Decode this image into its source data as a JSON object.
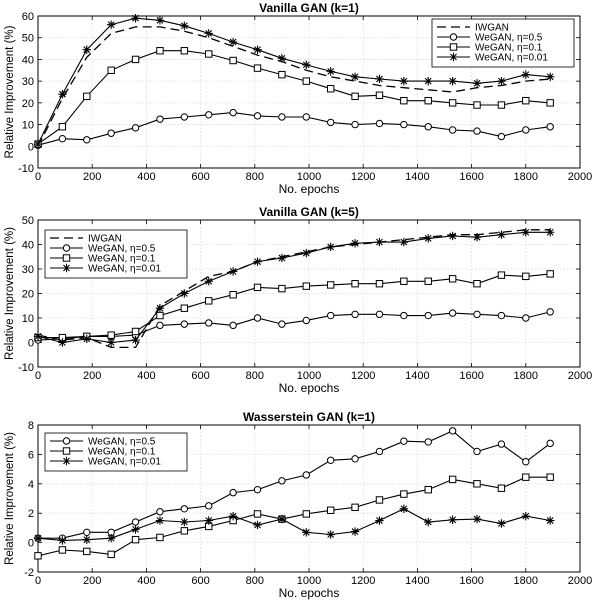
{
  "chart_data": [
    {
      "type": "line",
      "title": "Vanilla GAN (k=1)",
      "xlabel": "No. epochs",
      "ylabel": "Relative Improvement (%)",
      "xlim": [
        0,
        2000
      ],
      "ylim": [
        -10,
        60
      ],
      "xticks": [
        0,
        200,
        400,
        600,
        800,
        1000,
        1200,
        1400,
        1600,
        1800,
        2000
      ],
      "yticks": [
        -10,
        0,
        10,
        20,
        30,
        40,
        50,
        60
      ],
      "grid": true,
      "legend_position": "top-right",
      "series": [
        {
          "name": "IWGAN",
          "marker": "none",
          "dash": true,
          "x": [
            0,
            90,
            180,
            270,
            360,
            450,
            540,
            630,
            720,
            810,
            900,
            990,
            1080,
            1170,
            1260,
            1350,
            1440,
            1530,
            1620,
            1710,
            1800,
            1890
          ],
          "y": [
            0,
            22,
            41,
            52,
            55,
            55,
            53,
            50,
            46,
            42,
            39,
            35,
            32,
            30,
            28,
            27,
            26,
            25,
            27,
            28,
            30,
            31
          ]
        },
        {
          "name": "WeGAN, η=0.5",
          "marker": "circle",
          "dash": false,
          "x": [
            0,
            90,
            180,
            270,
            360,
            450,
            540,
            630,
            720,
            810,
            900,
            990,
            1080,
            1170,
            1260,
            1350,
            1440,
            1530,
            1620,
            1710,
            1800,
            1890
          ],
          "y": [
            0.5,
            3.5,
            3,
            6,
            8.5,
            12.5,
            13.5,
            14.5,
            15.5,
            14,
            13.5,
            13.5,
            11,
            10,
            10.5,
            10,
            9,
            7.5,
            7,
            4.5,
            7.5,
            9
          ]
        },
        {
          "name": "WeGAN, η=0.1",
          "marker": "square",
          "dash": false,
          "x": [
            0,
            90,
            180,
            270,
            360,
            450,
            540,
            630,
            720,
            810,
            900,
            990,
            1080,
            1170,
            1260,
            1350,
            1440,
            1530,
            1620,
            1710,
            1800,
            1890
          ],
          "y": [
            1,
            9,
            23,
            35,
            40,
            44,
            44,
            42.5,
            39.5,
            36,
            33,
            30,
            26.5,
            23,
            23.5,
            21,
            21,
            20,
            19,
            19,
            21,
            20
          ]
        },
        {
          "name": "WeGAN, η=0.01",
          "marker": "star",
          "dash": false,
          "x": [
            0,
            90,
            180,
            270,
            360,
            450,
            540,
            630,
            720,
            810,
            900,
            990,
            1080,
            1170,
            1260,
            1350,
            1440,
            1530,
            1620,
            1710,
            1800,
            1890
          ],
          "y": [
            1,
            24,
            44.5,
            56,
            59,
            58,
            55.5,
            52,
            48,
            44.5,
            40.5,
            37.5,
            34.5,
            32,
            31,
            30,
            30,
            30,
            29,
            30,
            33,
            32
          ]
        }
      ]
    },
    {
      "type": "line",
      "title": "Vanilla GAN (k=5)",
      "xlabel": "No. epochs",
      "ylabel": "Relative Improvement (%)",
      "xlim": [
        0,
        2000
      ],
      "ylim": [
        -10,
        50
      ],
      "xticks": [
        0,
        200,
        400,
        600,
        800,
        1000,
        1200,
        1400,
        1600,
        1800,
        2000
      ],
      "yticks": [
        -10,
        0,
        10,
        20,
        30,
        40,
        50
      ],
      "grid": true,
      "legend_position": "top-left",
      "series": [
        {
          "name": "IWGAN",
          "marker": "none",
          "dash": true,
          "x": [
            0,
            90,
            180,
            270,
            360,
            450,
            540,
            630,
            720,
            810,
            900,
            990,
            1080,
            1170,
            1260,
            1350,
            1440,
            1530,
            1620,
            1710,
            1800,
            1890
          ],
          "y": [
            3,
            1,
            2,
            -2,
            -2,
            15,
            21,
            27,
            29,
            33,
            35,
            37,
            39,
            40,
            41,
            42,
            43,
            44,
            44,
            45,
            46,
            46
          ]
        },
        {
          "name": "WeGAN, η=0.5",
          "marker": "circle",
          "dash": false,
          "x": [
            0,
            90,
            180,
            270,
            360,
            450,
            540,
            630,
            720,
            810,
            900,
            990,
            1080,
            1170,
            1260,
            1350,
            1440,
            1530,
            1620,
            1710,
            1800,
            1890
          ],
          "y": [
            1,
            1.5,
            2.5,
            2.5,
            3,
            7,
            7.5,
            8,
            7,
            10,
            7.5,
            9,
            11,
            11.5,
            11.5,
            11,
            11,
            12,
            11.5,
            11,
            10,
            12.5
          ]
        },
        {
          "name": "WeGAN, η=0.1",
          "marker": "square",
          "dash": false,
          "x": [
            0,
            90,
            180,
            270,
            360,
            450,
            540,
            630,
            720,
            810,
            900,
            990,
            1080,
            1170,
            1260,
            1350,
            1440,
            1530,
            1620,
            1710,
            1800,
            1890
          ],
          "y": [
            2,
            2,
            2.5,
            3,
            4.5,
            11,
            14,
            17,
            19.5,
            22.5,
            22,
            23,
            23.5,
            24,
            24,
            25,
            25,
            26,
            24,
            27.5,
            27,
            28
          ]
        },
        {
          "name": "WeGAN, η=0.01",
          "marker": "star",
          "dash": false,
          "x": [
            0,
            90,
            180,
            270,
            360,
            450,
            540,
            630,
            720,
            810,
            900,
            990,
            1080,
            1170,
            1260,
            1350,
            1440,
            1530,
            1620,
            1710,
            1800,
            1890
          ],
          "y": [
            2.5,
            0,
            1.5,
            0,
            1,
            14,
            20,
            25,
            29,
            33,
            34.5,
            36.5,
            39,
            40.5,
            41,
            41,
            42.5,
            43.5,
            43,
            44,
            45,
            45
          ]
        }
      ]
    },
    {
      "type": "line",
      "title": "Wasserstein GAN (k=1)",
      "xlabel": "No. epochs",
      "ylabel": "Relative Improvement (%)",
      "xlim": [
        0,
        2000
      ],
      "ylim": [
        -2,
        8
      ],
      "xticks": [
        0,
        200,
        400,
        600,
        800,
        1000,
        1200,
        1400,
        1600,
        1800,
        2000
      ],
      "yticks": [
        -2,
        0,
        2,
        4,
        6,
        8
      ],
      "grid": true,
      "legend_position": "top-left",
      "series": [
        {
          "name": "WeGAN, η=0.5",
          "marker": "circle",
          "dash": false,
          "x": [
            0,
            90,
            180,
            270,
            360,
            450,
            540,
            630,
            720,
            810,
            900,
            990,
            1080,
            1170,
            1260,
            1350,
            1440,
            1530,
            1620,
            1710,
            1800,
            1890
          ],
          "y": [
            0.3,
            0.3,
            0.7,
            0.7,
            1.4,
            2.1,
            2.3,
            2.5,
            3.4,
            3.6,
            4.2,
            4.6,
            5.6,
            5.7,
            6.2,
            6.9,
            6.85,
            7.6,
            6.2,
            6.7,
            5.5,
            6.75
          ]
        },
        {
          "name": "WeGAN, η=0.1",
          "marker": "square",
          "dash": false,
          "x": [
            0,
            90,
            180,
            270,
            360,
            450,
            540,
            630,
            720,
            810,
            900,
            990,
            1080,
            1170,
            1260,
            1350,
            1440,
            1530,
            1620,
            1710,
            1800,
            1890
          ],
          "y": [
            -0.9,
            -0.5,
            -0.6,
            -0.8,
            0.2,
            0.35,
            0.8,
            1.1,
            1.5,
            1.95,
            1.6,
            1.95,
            2.2,
            2.4,
            2.9,
            3.3,
            3.6,
            4.3,
            4.0,
            3.7,
            4.45,
            4.45
          ]
        },
        {
          "name": "WeGAN, η=0.01",
          "marker": "star",
          "dash": false,
          "x": [
            0,
            90,
            180,
            270,
            360,
            450,
            540,
            630,
            720,
            810,
            900,
            990,
            1080,
            1170,
            1260,
            1350,
            1440,
            1530,
            1620,
            1710,
            1800,
            1890
          ],
          "y": [
            0.3,
            0.15,
            0.2,
            0.3,
            0.9,
            1.5,
            1.4,
            1.5,
            1.8,
            1.2,
            1.6,
            0.7,
            0.55,
            0.75,
            1.5,
            2.3,
            1.4,
            1.55,
            1.6,
            1.3,
            1.8,
            1.5
          ]
        }
      ]
    }
  ]
}
